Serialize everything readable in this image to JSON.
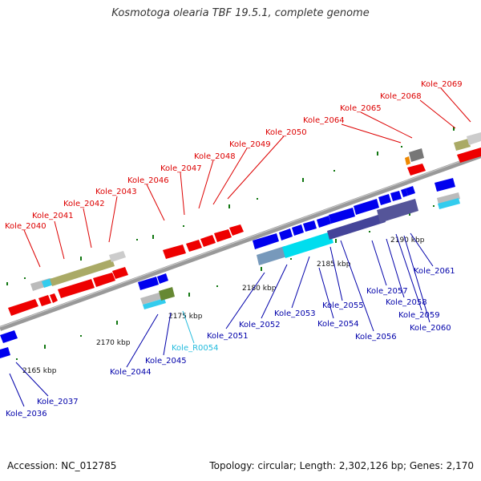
{
  "title": "Kosmotoga olearia TBF 19.5.1, complete genome",
  "footer": {
    "accession": "Accession: NC_012785",
    "topology": "Topology: circular; Length: 2,302,126 bp; Genes: 2,170"
  },
  "colors": {
    "forward_label": "#dd0000",
    "reverse_label": "#0000aa",
    "rna_label": "#22bbdd",
    "axis": "#888888",
    "tick": "#117711"
  },
  "scale_labels": [
    "2165 kbp",
    "2170 kbp",
    "2175 kbp",
    "2180 kbp",
    "2185 kbp",
    "2190 kbp"
  ],
  "gene_labels": {
    "forward": [
      "Kole_2040",
      "Kole_2041",
      "Kole_2042",
      "Kole_2043",
      "Kole_2046",
      "Kole_2047",
      "Kole_2048",
      "Kole_2049",
      "Kole_2050",
      "Kole_2064",
      "Kole_2065",
      "Kole_2068",
      "Kole_2069"
    ],
    "reverse": [
      "Kole_2036",
      "Kole_2037",
      "Kole_2044",
      "Kole_2045",
      "Kole_2051",
      "Kole_2052",
      "Kole_2053",
      "Kole_2054",
      "Kole_2055",
      "Kole_2056",
      "Kole_2057",
      "Kole_2058",
      "Kole_2059",
      "Kole_2060",
      "Kole_2061"
    ],
    "rna": [
      "Kole_R0054"
    ]
  }
}
